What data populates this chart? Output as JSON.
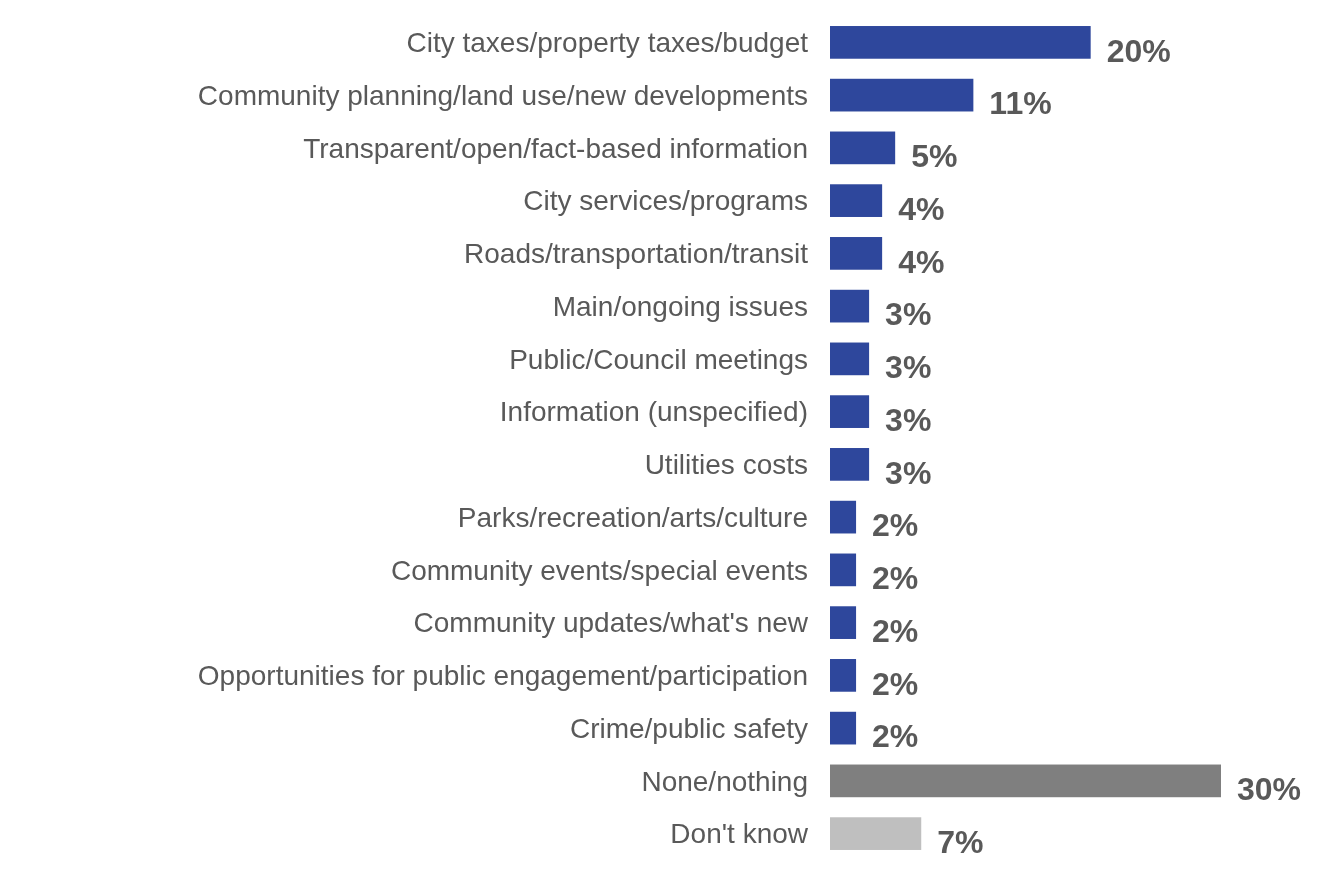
{
  "chart_data": {
    "type": "bar",
    "orientation": "horizontal",
    "categories": [
      "City taxes/property taxes/budget",
      "Community planning/land use/new developments",
      "Transparent/open/fact-based information",
      "City services/programs",
      "Roads/transportation/transit",
      "Main/ongoing issues",
      "Public/Council meetings",
      "Information (unspecified)",
      "Utilities costs",
      "Parks/recreation/arts/culture",
      "Community events/special events",
      "Community updates/what's new",
      "Opportunities for public engagement/participation",
      "Crime/public safety",
      "None/nothing",
      "Don't know"
    ],
    "values": [
      20,
      11,
      5,
      4,
      4,
      3,
      3,
      3,
      3,
      2,
      2,
      2,
      2,
      2,
      30,
      7
    ],
    "value_labels": [
      "20%",
      "11%",
      "5%",
      "4%",
      "4%",
      "3%",
      "3%",
      "3%",
      "3%",
      "2%",
      "2%",
      "2%",
      "2%",
      "2%",
      "30%",
      "7%"
    ],
    "colors": [
      "#2e479c",
      "#2e479c",
      "#2e479c",
      "#2e479c",
      "#2e479c",
      "#2e479c",
      "#2e479c",
      "#2e479c",
      "#2e479c",
      "#2e479c",
      "#2e479c",
      "#2e479c",
      "#2e479c",
      "#2e479c",
      "#7f7f7f",
      "#bfbfbf"
    ]
  }
}
